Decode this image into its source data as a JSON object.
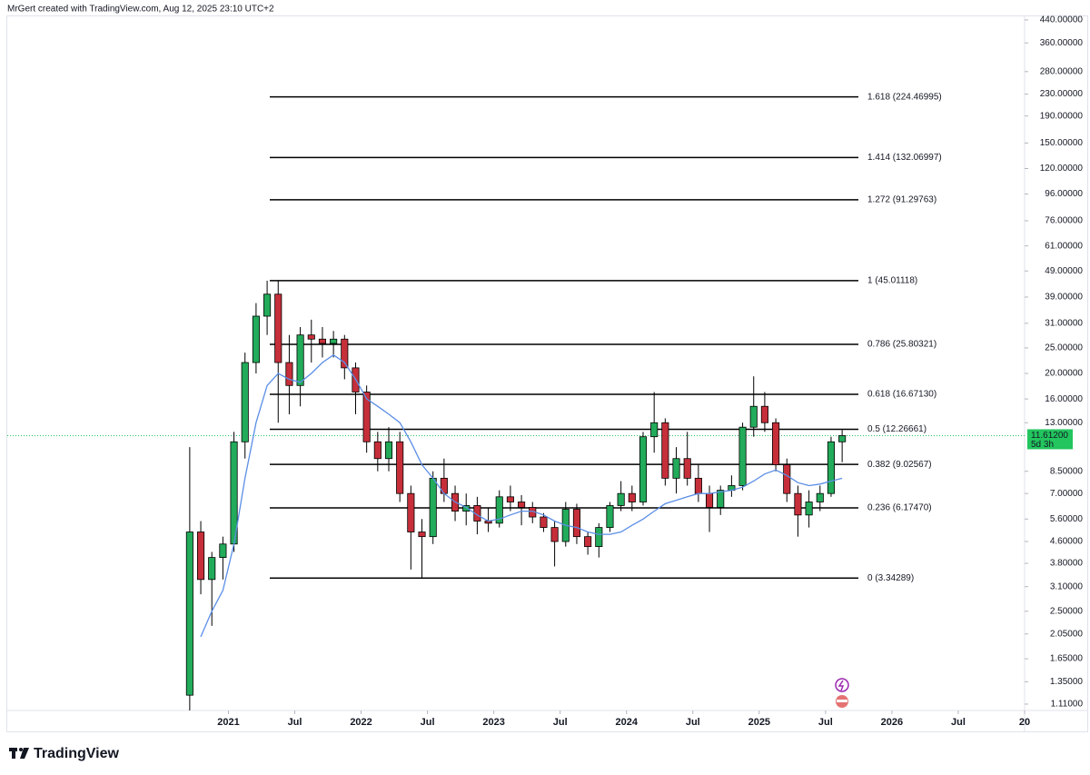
{
  "header": {
    "text": "MrGert created with TradingView.com, Aug 12, 2025 23:10 UTC+2"
  },
  "logo": {
    "text": "TradingView"
  },
  "chart_data": {
    "type": "candlestick",
    "log_scale": true,
    "up_color": "#22ab5a",
    "down_color": "#c62f3a",
    "x": [
      "2020-09",
      "2020-10",
      "2020-11",
      "2020-12",
      "2021-01",
      "2021-02",
      "2021-03",
      "2021-04",
      "2021-05",
      "2021-06",
      "2021-07",
      "2021-08",
      "2021-09",
      "2021-10",
      "2021-11",
      "2021-12",
      "2022-01",
      "2022-02",
      "2022-03",
      "2022-04",
      "2022-05",
      "2022-06",
      "2022-07",
      "2022-08",
      "2022-09",
      "2022-10",
      "2022-11",
      "2022-12",
      "2023-01",
      "2023-02",
      "2023-03",
      "2023-04",
      "2023-05",
      "2023-06",
      "2023-07",
      "2023-08",
      "2023-09",
      "2023-10",
      "2023-11",
      "2023-12",
      "2024-01",
      "2024-02",
      "2024-03",
      "2024-04",
      "2024-05",
      "2024-06",
      "2024-07",
      "2024-08",
      "2024-09",
      "2024-10",
      "2024-11",
      "2024-12",
      "2025-01",
      "2025-02",
      "2025-03",
      "2025-04",
      "2025-05",
      "2025-06",
      "2025-07",
      "2025-08"
    ],
    "open": [
      1.2,
      5.0,
      3.3,
      4.0,
      4.5,
      11,
      22,
      33,
      40,
      22,
      18,
      28,
      27,
      26,
      27,
      21,
      17,
      11,
      9.5,
      11,
      7,
      5,
      4.8,
      8,
      7,
      6,
      6.3,
      5.5,
      5.4,
      6.8,
      6.5,
      6.2,
      5.7,
      5.2,
      4.6,
      6.1,
      4.8,
      4.4,
      5.2,
      6.3,
      7.0,
      6.5,
      11.5,
      13,
      8,
      9.5,
      8,
      7,
      6.2,
      7.2,
      7.5,
      12.5,
      15,
      13,
      9,
      7,
      5.8,
      6.5,
      7,
      11
    ],
    "high": [
      10.5,
      5.5,
      4.2,
      4.8,
      12,
      24,
      37,
      45,
      45,
      28,
      30,
      32,
      30,
      29,
      28,
      22,
      18,
      12,
      12.5,
      12,
      7.5,
      5.6,
      8.5,
      9.5,
      7.5,
      7,
      6.8,
      6.2,
      7.2,
      7.5,
      6.9,
      6.5,
      5.9,
      5.5,
      6.5,
      6.4,
      5.0,
      5.4,
      6.5,
      7.8,
      7.5,
      12,
      17,
      13.5,
      10.5,
      12,
      9,
      7.5,
      7.5,
      8.2,
      13,
      19.5,
      17,
      13.5,
      9.5,
      7.5,
      7.2,
      7.5,
      11.5,
      12.2
    ],
    "low": [
      1.05,
      2.9,
      2.2,
      3.3,
      4.2,
      9.5,
      20,
      28,
      13,
      14,
      15,
      22,
      23,
      23,
      19,
      14,
      10,
      8.5,
      8.5,
      6.5,
      3.6,
      3.34,
      4.5,
      6.5,
      5.5,
      5.3,
      4.9,
      5.0,
      5.2,
      6,
      5.3,
      5.4,
      5.0,
      3.7,
      4.4,
      4.5,
      4.1,
      4.0,
      5.0,
      6.0,
      6.0,
      6.3,
      10,
      7.5,
      7,
      7.5,
      6.5,
      5,
      5.8,
      6.8,
      7.2,
      11.5,
      12,
      8.5,
      6.5,
      4.8,
      5.2,
      6,
      6.8,
      9.2
    ],
    "close": [
      5.0,
      3.3,
      4.0,
      4.5,
      11,
      22,
      33,
      40,
      22,
      18,
      28,
      27,
      26,
      27,
      21,
      17,
      11,
      9.5,
      11,
      7,
      5,
      4.8,
      8,
      7,
      6,
      6.3,
      5.5,
      5.4,
      6.8,
      6.5,
      6.2,
      5.7,
      5.2,
      4.6,
      6.1,
      4.8,
      4.4,
      5.2,
      6.3,
      7.0,
      6.5,
      11.5,
      13,
      8,
      9.5,
      8,
      7,
      6.2,
      7.2,
      7.5,
      12.5,
      15,
      13,
      9,
      7,
      5.8,
      6.5,
      7,
      11,
      11.612
    ],
    "ma": {
      "color": "#5b8ee6",
      "values": [
        null,
        2.0,
        2.5,
        3.0,
        4.5,
        8,
        13,
        18,
        20,
        19,
        18.5,
        20,
        22,
        23.5,
        22,
        19,
        16,
        15,
        14,
        13,
        11,
        9,
        8,
        7,
        6.5,
        6.2,
        5.8,
        5.5,
        5.6,
        5.8,
        6.0,
        6.0,
        5.8,
        5.5,
        5.3,
        5.2,
        5.0,
        4.9,
        4.9,
        5.0,
        5.3,
        5.6,
        6.0,
        6.4,
        6.6,
        6.8,
        7.0,
        7.0,
        7.1,
        7.2,
        7.4,
        7.8,
        8.3,
        8.6,
        8.2,
        7.7,
        7.5,
        7.6,
        7.8,
        8.0
      ]
    },
    "levels": [
      {
        "value": 224.46995,
        "label": "1.618 (224.46995)"
      },
      {
        "value": 132.06997,
        "label": "1.414 (132.06997)"
      },
      {
        "value": 91.29763,
        "label": "1.272 (91.29763)"
      },
      {
        "value": 45.01118,
        "label": "1 (45.01118)"
      },
      {
        "value": 25.80321,
        "label": "0.786 (25.80321)"
      },
      {
        "value": 16.6713,
        "label": "0.618 (16.67130)"
      },
      {
        "value": 12.26661,
        "label": "0.5 (12.26661)"
      },
      {
        "value": 9.02567,
        "label": "0.382 (9.02567)"
      },
      {
        "value": 6.1747,
        "label": "0.236 (6.17470)"
      },
      {
        "value": 3.34289,
        "label": "0 (3.34289)"
      }
    ],
    "level_color": "#000000",
    "last_price": {
      "value": 11.612,
      "label": "11.61200"
    },
    "countdown": "5d 3h",
    "last_color": "#22c55e",
    "xlim": [
      "2019-05",
      "2027-01"
    ],
    "xticks": [
      {
        "value": "2021-01",
        "label": "2021"
      },
      {
        "value": "2021-07",
        "label": "Jul"
      },
      {
        "value": "2022-01",
        "label": "2022"
      },
      {
        "value": "2022-07",
        "label": "Jul"
      },
      {
        "value": "2023-01",
        "label": "2023"
      },
      {
        "value": "2023-07",
        "label": "Jul"
      },
      {
        "value": "2024-01",
        "label": "2024"
      },
      {
        "value": "2024-07",
        "label": "Jul"
      },
      {
        "value": "2025-01",
        "label": "2025"
      },
      {
        "value": "2025-07",
        "label": "Jul"
      },
      {
        "value": "2026-01",
        "label": "2026"
      },
      {
        "value": "2026-07",
        "label": "Jul"
      },
      {
        "value": "2027-01",
        "label": "20"
      }
    ],
    "ylim": [
      1.025,
      454
    ],
    "yticks": [
      {
        "value": 440,
        "label": "440.00000"
      },
      {
        "value": 360,
        "label": "360.00000"
      },
      {
        "value": 280,
        "label": "280.00000"
      },
      {
        "value": 230,
        "label": "230.00000"
      },
      {
        "value": 190,
        "label": "190.00000"
      },
      {
        "value": 150,
        "label": "150.00000"
      },
      {
        "value": 120,
        "label": "120.00000"
      },
      {
        "value": 96,
        "label": "96.00000"
      },
      {
        "value": 76,
        "label": "76.00000"
      },
      {
        "value": 61,
        "label": "61.00000"
      },
      {
        "value": 49,
        "label": "49.00000"
      },
      {
        "value": 39,
        "label": "39.00000"
      },
      {
        "value": 31,
        "label": "31.00000"
      },
      {
        "value": 25,
        "label": "25.00000"
      },
      {
        "value": 20,
        "label": "20.00000"
      },
      {
        "value": 16,
        "label": "16.00000"
      },
      {
        "value": 13,
        "label": "13.00000"
      },
      {
        "value": 8.5,
        "label": "8.50000"
      },
      {
        "value": 7,
        "label": "7.00000"
      },
      {
        "value": 5.6,
        "label": "5.60000"
      },
      {
        "value": 4.6,
        "label": "4.60000"
      },
      {
        "value": 3.8,
        "label": "3.80000"
      },
      {
        "value": 3.1,
        "label": "3.10000"
      },
      {
        "value": 2.5,
        "label": "2.50000"
      },
      {
        "value": 2.05,
        "label": "2.05000"
      },
      {
        "value": 1.65,
        "label": "1.65000"
      },
      {
        "value": 1.35,
        "label": "1.35000"
      },
      {
        "value": 1.11,
        "label": "1.11000"
      }
    ]
  }
}
